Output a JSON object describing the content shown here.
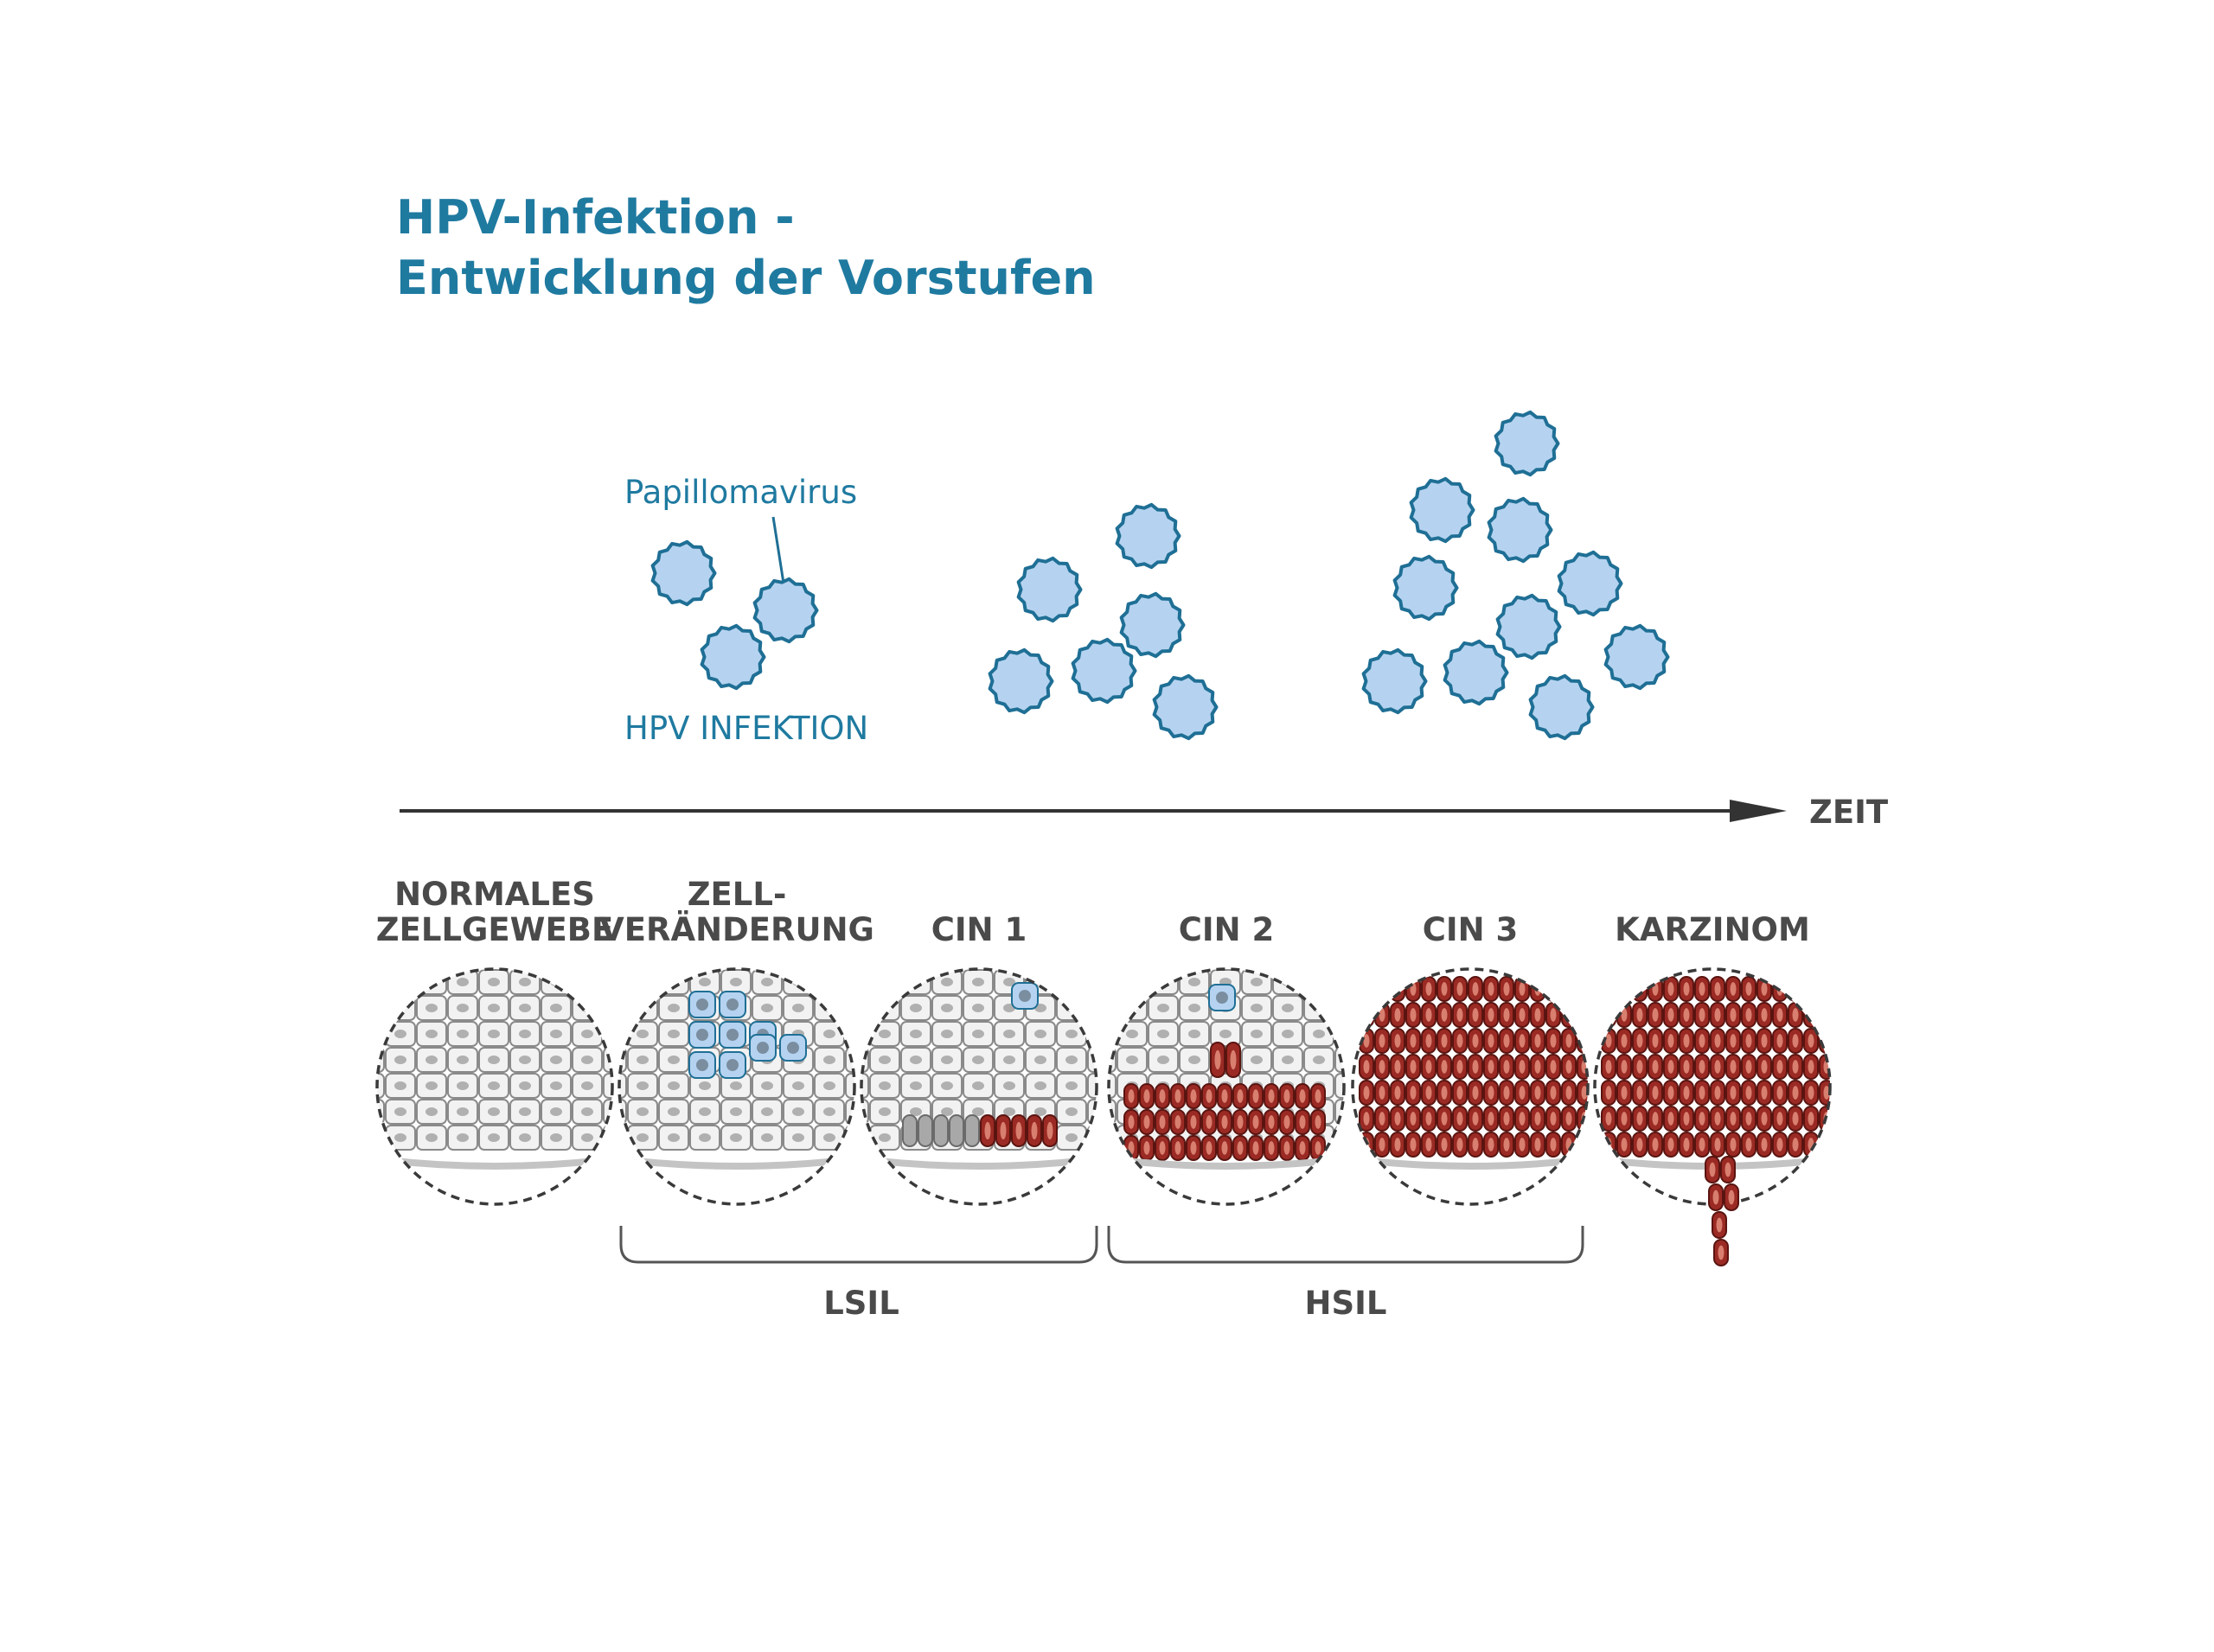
{
  "title": {
    "line1": "HPV-Infektion -",
    "line2": "Entwicklung der Vorstufen"
  },
  "virus": {
    "label": "Papillomavirus",
    "infection_label": "HPV INFEKTION"
  },
  "timeline": {
    "label": "ZEIT"
  },
  "stages": [
    {
      "line1": "NORMALES",
      "line2": "ZELLGEWEBE"
    },
    {
      "line1": "ZELL-",
      "line2": "VERÄNDERUNG"
    },
    {
      "line1": "",
      "line2": "CIN 1"
    },
    {
      "line1": "",
      "line2": "CIN 2"
    },
    {
      "line1": "",
      "line2": "CIN 3"
    },
    {
      "line1": "",
      "line2": "KARZINOM"
    }
  ],
  "groups": [
    {
      "label": "LSIL"
    },
    {
      "label": "HSIL"
    }
  ],
  "colors": {
    "title": "#1f7aa0",
    "virus_fill": "#b5d3f0",
    "virus_stroke": "#1f6f95",
    "normal_cell": "#f2f2f2",
    "abnormal_cell": "#9b2a24",
    "arrow": "#333333"
  }
}
